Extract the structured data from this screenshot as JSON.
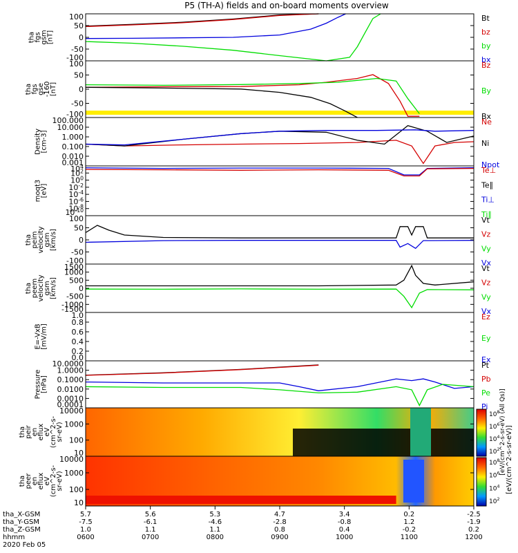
{
  "title": "P5 (TH-A) fields and on-board moments overview",
  "colors": {
    "black": "#000000",
    "red": "#d40000",
    "green": "#00dd00",
    "blue": "#0000dd",
    "yellow": "#ffee00"
  },
  "chart_data": [
    {
      "type": "line",
      "ylabel": [
        "tha",
        "fgs",
        "gsm",
        "[nT]"
      ],
      "ylim": [
        -100,
        100
      ],
      "yticks": [
        "100",
        "50",
        "0",
        "-50",
        "-100"
      ],
      "legend": [
        {
          "label": "Bt",
          "color": "black"
        },
        {
          "label": "bz",
          "color": "red"
        },
        {
          "label": "by",
          "color": "green"
        },
        {
          "label": "bx",
          "color": "blue"
        }
      ],
      "series": [
        {
          "name": "Bt",
          "color": "black",
          "x": [
            0,
            0.12,
            0.25,
            0.38,
            0.5,
            0.6
          ],
          "y": [
            48,
            55,
            64,
            78,
            95,
            100
          ]
        },
        {
          "name": "bz",
          "color": "red",
          "x": [
            0,
            0.12,
            0.25,
            0.38,
            0.5,
            0.6
          ],
          "y": [
            46,
            53,
            62,
            76,
            93,
            100
          ]
        },
        {
          "name": "by",
          "color": "green",
          "x": [
            0,
            0.12,
            0.25,
            0.38,
            0.5,
            0.62,
            0.68,
            0.7,
            0.72,
            0.74,
            0.76
          ],
          "y": [
            -18,
            -25,
            -38,
            -55,
            -78,
            -100,
            -85,
            -40,
            20,
            80,
            100
          ]
        },
        {
          "name": "bx",
          "color": "blue",
          "x": [
            0,
            0.12,
            0.25,
            0.38,
            0.5,
            0.58,
            0.62,
            0.65,
            0.67
          ],
          "y": [
            -5,
            -4,
            -2,
            0,
            10,
            35,
            60,
            85,
            100
          ]
        }
      ]
    },
    {
      "type": "line",
      "ylabel": [
        "tha",
        "fgs",
        "gse",
        "-160",
        "[nT]"
      ],
      "ylim": [
        -125,
        100
      ],
      "yticks": [
        "100",
        "50",
        "0",
        "-50",
        "-100"
      ],
      "legend": [
        {
          "label": "Bz",
          "color": "red"
        },
        {
          "label": "By",
          "color": "green"
        },
        {
          "label": "Bx",
          "color": "black"
        }
      ],
      "series": [
        {
          "name": "Bz",
          "color": "red",
          "x": [
            0,
            0.2,
            0.4,
            0.55,
            0.62,
            0.7,
            0.74,
            0.78,
            0.81,
            0.83,
            0.86
          ],
          "y": [
            -5,
            -3,
            -2,
            5,
            15,
            30,
            45,
            10,
            -60,
            -120,
            -120
          ]
        },
        {
          "name": "By",
          "color": "green",
          "x": [
            0,
            0.2,
            0.4,
            0.55,
            0.65,
            0.75,
            0.8,
            0.83,
            0.86
          ],
          "y": [
            5,
            3,
            6,
            10,
            15,
            30,
            20,
            -50,
            -110
          ]
        },
        {
          "name": "Bx",
          "color": "black",
          "x": [
            0,
            0.2,
            0.4,
            0.5,
            0.58,
            0.63,
            0.67,
            0.7
          ],
          "y": [
            -5,
            -8,
            -12,
            -25,
            -45,
            -70,
            -100,
            -125
          ]
        }
      ]
    },
    {
      "type": "line",
      "ylabel": [
        "Density",
        "[cm-3]"
      ],
      "ylim": [
        0.001,
        1000
      ],
      "scale": "log",
      "yticks": [
        "100.000",
        "10.000",
        "1.000",
        "0.100",
        "0.010",
        "0.001"
      ],
      "legend": [
        {
          "label": "Ne",
          "color": "red"
        },
        {
          "label": "Ni",
          "color": "black"
        },
        {
          "label": "Npot",
          "color": "blue"
        }
      ],
      "series": [
        {
          "name": "Ne",
          "color": "red",
          "x": [
            0,
            0.1,
            0.25,
            0.4,
            0.55,
            0.7,
            0.8,
            0.84,
            0.87,
            0.9,
            0.95,
            1
          ],
          "y": [
            0.5,
            0.3,
            0.4,
            0.5,
            0.6,
            0.8,
            1.5,
            0.3,
            0.002,
            0.3,
            0.8,
            1.0
          ]
        },
        {
          "name": "Ni",
          "color": "black",
          "x": [
            0,
            0.1,
            0.25,
            0.4,
            0.5,
            0.62,
            0.7,
            0.77,
            0.83,
            0.88,
            0.93,
            1
          ],
          "y": [
            0.5,
            0.3,
            2,
            10,
            20,
            15,
            1.5,
            0.5,
            100,
            20,
            0.8,
            5
          ]
        },
        {
          "name": "Npot",
          "color": "blue",
          "x": [
            0,
            0.1,
            0.25,
            0.4,
            0.5,
            0.62,
            0.75,
            0.85,
            0.9,
            1
          ],
          "y": [
            0.5,
            0.4,
            2,
            10,
            20,
            25,
            25,
            30,
            20,
            25
          ]
        }
      ]
    },
    {
      "type": "line",
      "ylabel": [
        "moqt3",
        "[eV]"
      ],
      "ylim": [
        1e-10,
        10000
      ],
      "scale": "log",
      "yticks": [
        "10^4",
        "10^2",
        "10^0",
        "10^-2",
        "10^-4",
        "10^-6",
        "10^-8",
        "10^-10"
      ],
      "legend": [
        {
          "label": "Te⊥",
          "color": "red"
        },
        {
          "label": "Te∥",
          "color": "black"
        },
        {
          "label": "Ti⊥",
          "color": "blue"
        },
        {
          "label": "Ti∥",
          "color": "green"
        }
      ],
      "series": [
        {
          "name": "Ti",
          "color": "blue",
          "x": [
            0,
            0.2,
            0.4,
            0.6,
            0.78,
            0.82,
            0.86,
            0.88,
            1
          ],
          "y": [
            3000,
            2000,
            2500,
            2500,
            2000,
            30,
            30,
            2000,
            3000
          ]
        },
        {
          "name": "Te",
          "color": "red",
          "x": [
            0,
            0.2,
            0.4,
            0.6,
            0.78,
            0.82,
            0.86,
            0.88,
            1
          ],
          "y": [
            1000,
            800,
            600,
            800,
            600,
            15,
            15,
            1500,
            2000
          ]
        }
      ]
    },
    {
      "type": "line",
      "ylabel": [
        "tha",
        "peim",
        "velocity",
        "gsm",
        "[km/s]"
      ],
      "ylim": [
        -100,
        100
      ],
      "yticks": [
        "100",
        "50",
        "0",
        "-50",
        "-100"
      ],
      "legend": [
        {
          "label": "Vt",
          "color": "black"
        },
        {
          "label": "Vz",
          "color": "red"
        },
        {
          "label": "Vy",
          "color": "green"
        },
        {
          "label": "Vx",
          "color": "blue"
        }
      ],
      "series": [
        {
          "name": "Vt",
          "color": "black",
          "x": [
            0,
            0.03,
            0.06,
            0.1,
            0.2,
            0.4,
            0.6,
            0.8,
            0.81,
            0.83,
            0.84,
            0.85,
            0.87,
            0.88,
            1
          ],
          "y": [
            30,
            60,
            40,
            20,
            10,
            8,
            8,
            8,
            55,
            55,
            20,
            55,
            55,
            8,
            8
          ]
        },
        {
          "name": "Vx",
          "color": "blue",
          "x": [
            0,
            0.2,
            0.4,
            0.6,
            0.8,
            0.81,
            0.83,
            0.85,
            0.87,
            1
          ],
          "y": [
            -10,
            -3,
            -2,
            -2,
            -2,
            -30,
            -15,
            -35,
            -3,
            -2
          ]
        }
      ]
    },
    {
      "type": "line",
      "ylabel": [
        "tha",
        "peem",
        "velocity",
        "gsm",
        "[km/s]"
      ],
      "ylim": [
        -1500,
        1500
      ],
      "yticks": [
        "1500",
        "1000",
        "500",
        "0",
        "-500",
        "-1000",
        "-1500"
      ],
      "legend": [
        {
          "label": "Vt",
          "color": "black"
        },
        {
          "label": "Vz",
          "color": "red"
        },
        {
          "label": "Vy",
          "color": "green"
        },
        {
          "label": "Vx",
          "color": "blue"
        }
      ],
      "series": [
        {
          "name": "Vt",
          "color": "black",
          "x": [
            0,
            0.2,
            0.4,
            0.6,
            0.8,
            0.82,
            0.84,
            0.85,
            0.87,
            0.9,
            1
          ],
          "y": [
            150,
            150,
            150,
            150,
            200,
            500,
            1400,
            800,
            300,
            200,
            400
          ]
        },
        {
          "name": "Vy",
          "color": "green",
          "x": [
            0,
            0.2,
            0.4,
            0.6,
            0.8,
            0.82,
            0.84,
            0.86,
            0.88,
            1
          ],
          "y": [
            -50,
            -60,
            -40,
            -60,
            -50,
            -500,
            -1200,
            -300,
            -80,
            -100
          ]
        }
      ]
    },
    {
      "type": "line",
      "ylabel": [
        "E=-VxB",
        "[mV/m]"
      ],
      "ylim": [
        0,
        1
      ],
      "yticks": [
        "1.0",
        "0.8",
        "0.6",
        "0.4",
        "0.2",
        "0.0"
      ],
      "legend": [
        {
          "label": "Ez",
          "color": "red"
        },
        {
          "label": "Ey",
          "color": "green"
        },
        {
          "label": "Ex",
          "color": "blue"
        }
      ],
      "series": []
    },
    {
      "type": "line",
      "ylabel": [
        "Pressure",
        "[nPa]"
      ],
      "ylim": [
        0.0001,
        100
      ],
      "scale": "log",
      "yticks": [
        "10.0000",
        "1.0000",
        "0.1000",
        "0.0100",
        "0.0010",
        "0.0001"
      ],
      "legend": [
        {
          "label": "Pt",
          "color": "black"
        },
        {
          "label": "Pb",
          "color": "red"
        },
        {
          "label": "Pe",
          "color": "green"
        },
        {
          "label": "Pi",
          "color": "blue"
        }
      ],
      "series": [
        {
          "name": "Pt",
          "color": "black",
          "x": [
            0,
            0.2,
            0.4,
            0.6
          ],
          "y": [
            1.5,
            3,
            8,
            30
          ]
        },
        {
          "name": "Pb",
          "color": "red",
          "x": [
            0,
            0.2,
            0.4,
            0.6
          ],
          "y": [
            1.4,
            2.8,
            7.5,
            28
          ]
        },
        {
          "name": "Pi",
          "color": "blue",
          "x": [
            0,
            0.2,
            0.4,
            0.5,
            0.55,
            0.6,
            0.7,
            0.8,
            0.84,
            0.87,
            0.9,
            0.95,
            1
          ],
          "y": [
            0.2,
            0.15,
            0.15,
            0.15,
            0.05,
            0.015,
            0.05,
            0.5,
            0.3,
            0.5,
            0.2,
            0.03,
            0.05
          ]
        },
        {
          "name": "Pe",
          "color": "green",
          "x": [
            0,
            0.2,
            0.4,
            0.5,
            0.6,
            0.7,
            0.8,
            0.84,
            0.86,
            0.88,
            0.92,
            1
          ],
          "y": [
            0.05,
            0.04,
            0.04,
            0.02,
            0.008,
            0.01,
            0.05,
            0.02,
            0.0002,
            0.02,
            0.1,
            0.05
          ]
        }
      ]
    },
    {
      "type": "heatmap",
      "ylabel": [
        "tha",
        "peir",
        "en",
        "eflux",
        "eV",
        "(cm^2-s-",
        "sr-eV)"
      ],
      "ylim": [
        5,
        30000
      ],
      "scale": "log",
      "yticks": [
        "10000",
        "1000",
        "100",
        "10"
      ]
    },
    {
      "type": "heatmap",
      "ylabel": [
        "tha",
        "peer",
        "en",
        "eflux",
        "eV",
        "(cm^2-s-",
        "sr-eV)"
      ],
      "ylim": [
        5,
        30000
      ],
      "scale": "log",
      "yticks": [
        "10000",
        "1000",
        "100",
        "10"
      ]
    }
  ],
  "colorbar": {
    "labels": [
      "10^8",
      "10^6",
      "10^4",
      "10^2"
    ],
    "title": "[eV/(cm^2-s-sr-eV)]",
    "subtitle": "[eV/(cm^2-s-sr-eV) (All Qs)]"
  },
  "x_axis": {
    "rows": [
      {
        "label": "tha_X-GSM",
        "values": [
          "5.7",
          "5.6",
          "5.3",
          "4.7",
          "3.4",
          "0.2",
          "-2.5"
        ]
      },
      {
        "label": "tha_Y-GSM",
        "values": [
          "-7.5",
          "-6.1",
          "-4.6",
          "-2.8",
          "-0.8",
          "1.2",
          "-1.9"
        ]
      },
      {
        "label": "tha_Z-GSM",
        "values": [
          "1.0",
          "1.1",
          "1.1",
          "0.8",
          "0.4",
          "-0.2",
          "0.2"
        ]
      },
      {
        "label": "hhmm",
        "values": [
          "0600",
          "0700",
          "0800",
          "0900",
          "1000",
          "1100",
          "1200"
        ]
      }
    ],
    "date": "2020 Feb 05"
  }
}
